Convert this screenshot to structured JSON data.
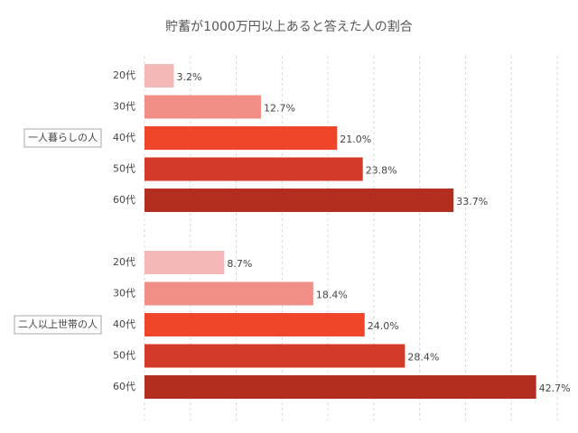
{
  "chart_data": {
    "type": "bar",
    "orientation": "horizontal",
    "title": "貯蓄が1000万円以上あると答えた人の割合",
    "colors": [
      "#f4b9b6",
      "#f28e88",
      "#ef452b",
      "#d43a28",
      "#b22f1f"
    ],
    "groups": [
      {
        "name": "一人暮らしの人",
        "categories": [
          "20代",
          "30代",
          "40代",
          "50代",
          "60代"
        ],
        "values": [
          3.2,
          12.7,
          21.0,
          23.8,
          33.7
        ],
        "value_labels": [
          "3.2%",
          "12.7%",
          "21.0%",
          "23.8%",
          "33.7%"
        ]
      },
      {
        "name": "二人以上世帯の人",
        "categories": [
          "20代",
          "30代",
          "40代",
          "50代",
          "60代"
        ],
        "values": [
          8.7,
          18.4,
          24.0,
          28.4,
          42.7
        ],
        "value_labels": [
          "8.7%",
          "18.4%",
          "24.0%",
          "28.4%",
          "42.7%"
        ]
      }
    ],
    "xlim": [
      0,
      45
    ],
    "xticks": [
      0,
      5,
      10,
      15,
      20,
      25,
      30,
      35,
      40,
      45
    ],
    "grid": true
  }
}
